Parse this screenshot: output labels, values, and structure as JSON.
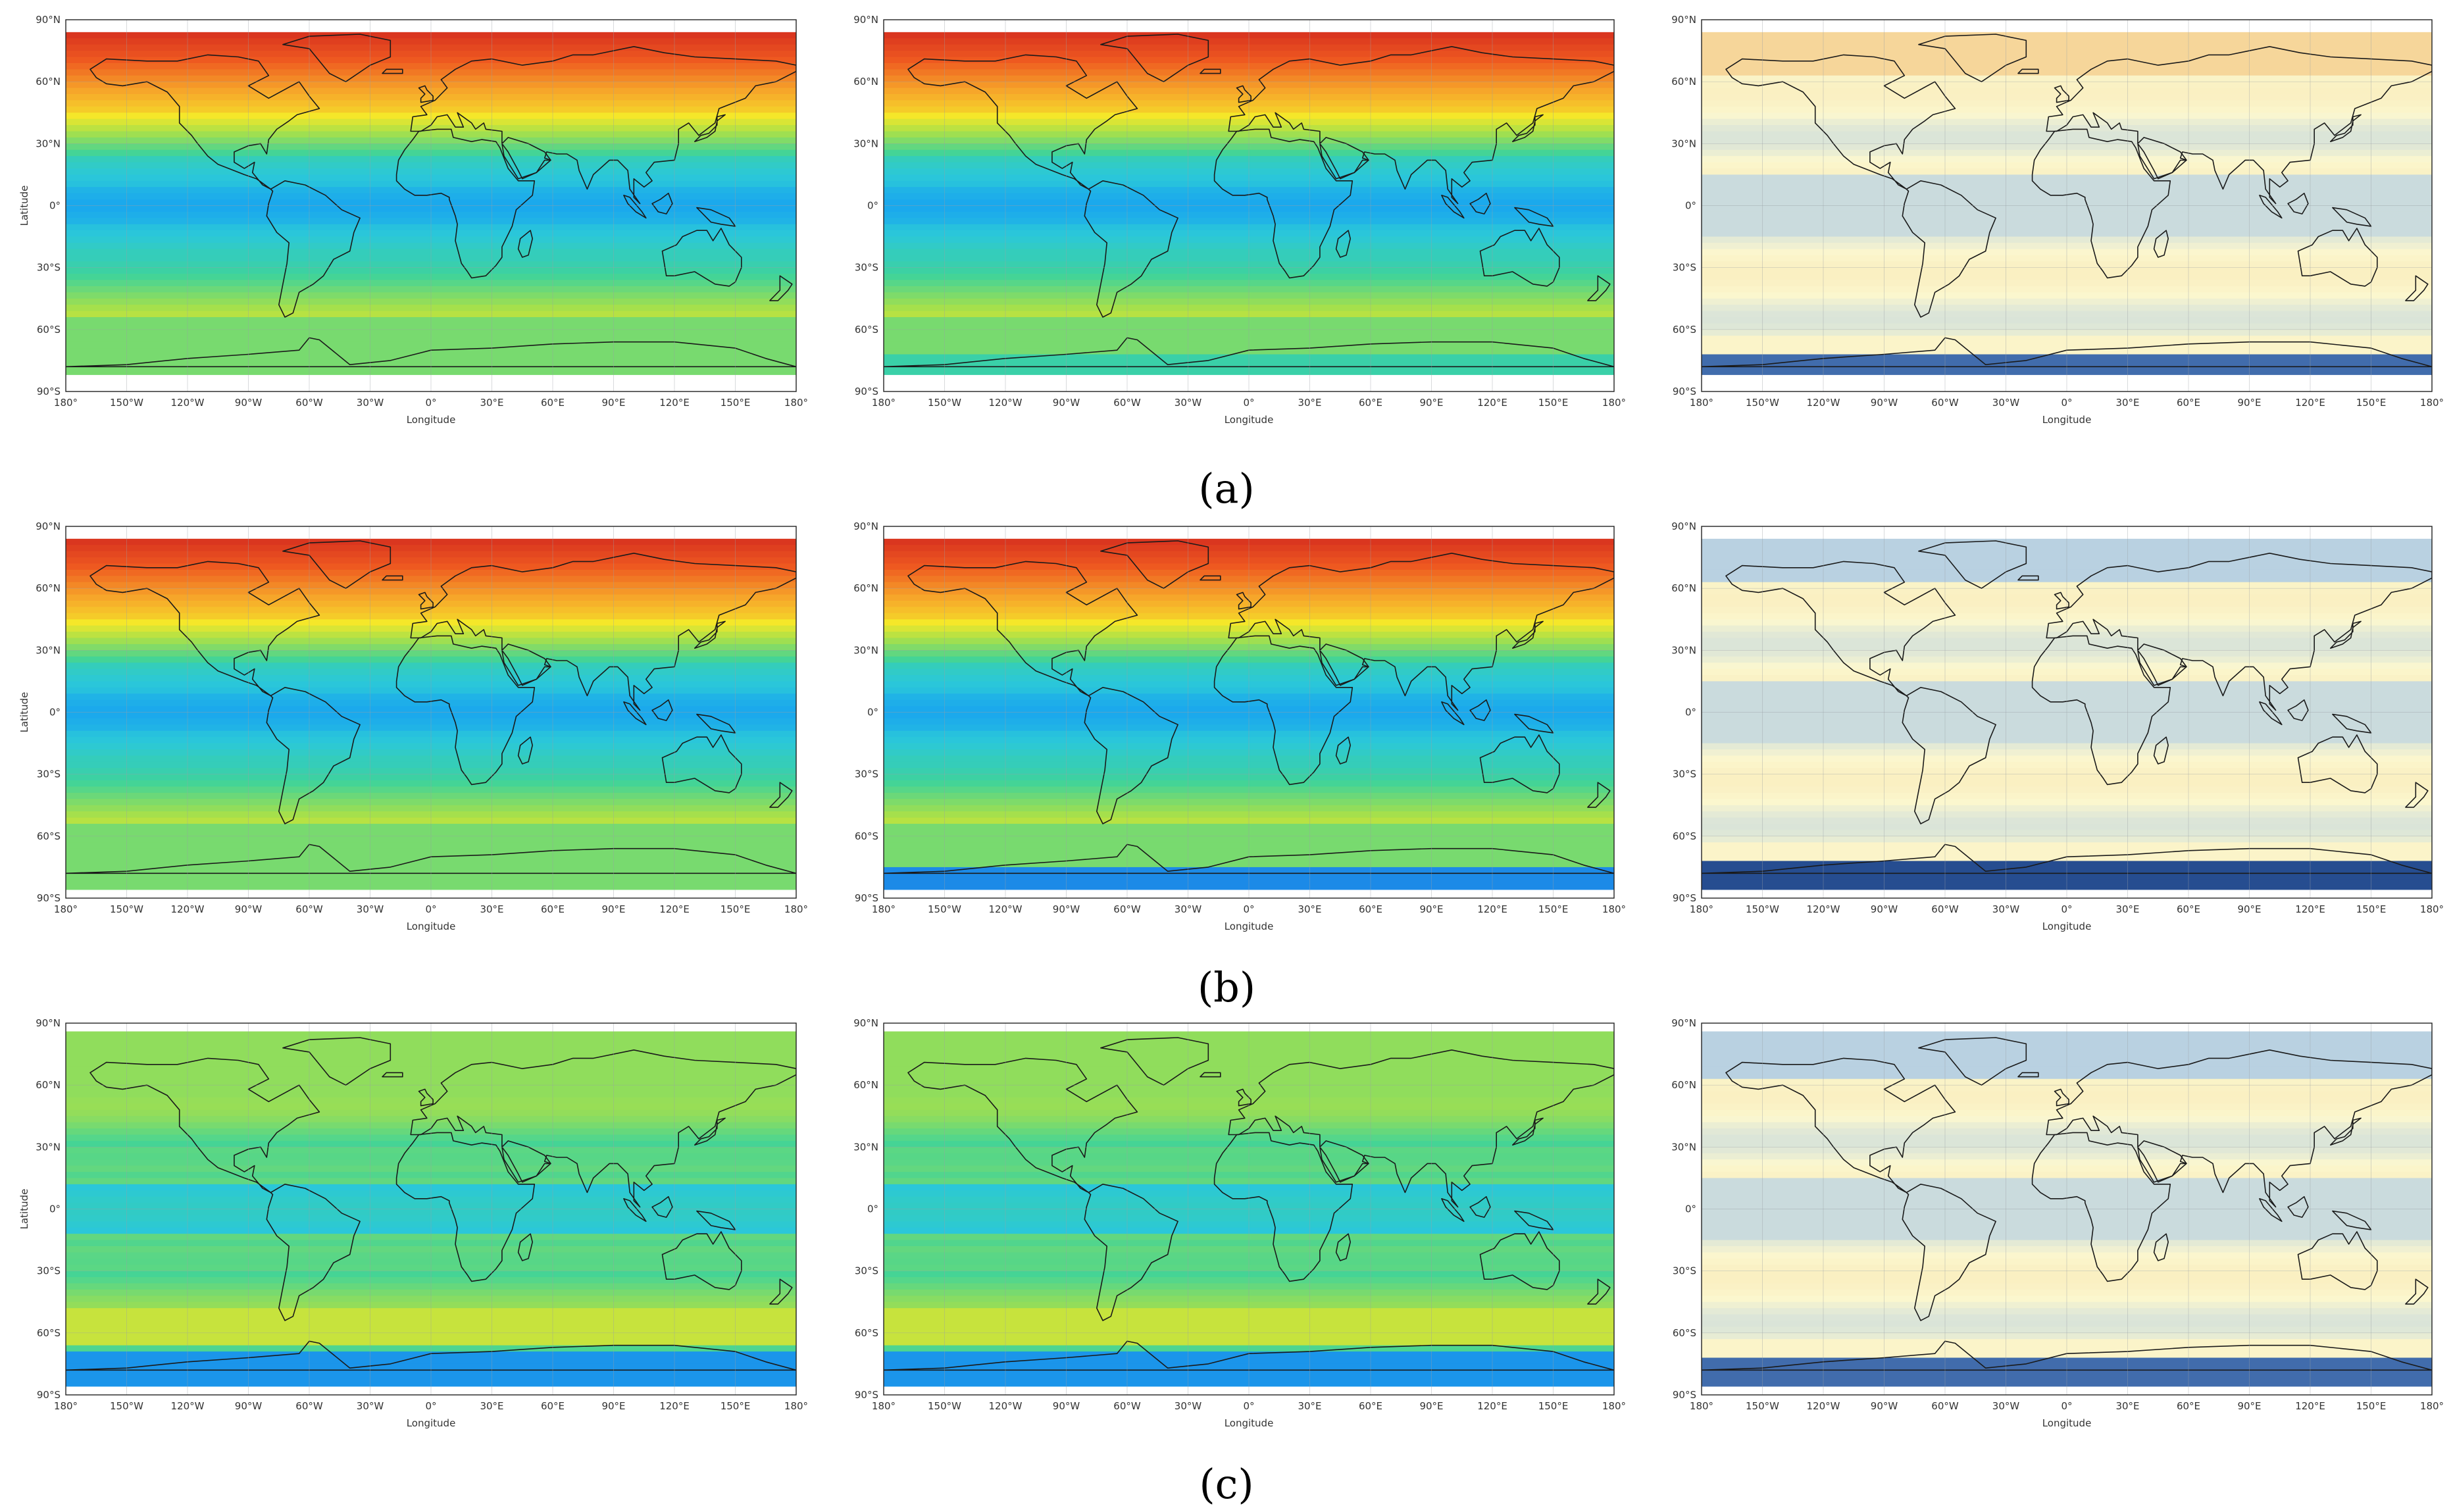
{
  "figure": {
    "rows": [
      {
        "caption": "(a)",
        "panels": [
          {
            "palette": "jet",
            "variant": "a-left"
          },
          {
            "palette": "jet",
            "variant": "a-mid"
          },
          {
            "palette": "diff",
            "variant": "a-right"
          }
        ]
      },
      {
        "caption": "(b)",
        "panels": [
          {
            "palette": "jet",
            "variant": "b-left"
          },
          {
            "palette": "jet",
            "variant": "b-mid"
          },
          {
            "palette": "diff",
            "variant": "b-right"
          }
        ]
      },
      {
        "caption": "(c)",
        "panels": [
          {
            "palette": "jet",
            "variant": "c-left"
          },
          {
            "palette": "jet",
            "variant": "c-mid"
          },
          {
            "palette": "diff",
            "variant": "c-right"
          }
        ]
      }
    ],
    "lat_ticks": [
      "90°N",
      "60°N",
      "30°N",
      "0°",
      "30°S",
      "60°S",
      "90°S"
    ],
    "lon_ticks": [
      "180°",
      "150°W",
      "120°W",
      "90°W",
      "60°W",
      "30°W",
      "0°",
      "30°E",
      "60°E",
      "90°E",
      "120°E",
      "150°E",
      "180°"
    ],
    "xlabel": "Longitude",
    "ylabel": "Latitude",
    "colors": {
      "jet_high": "#d7301f",
      "jet_mid": "#f5e829",
      "jet_low": "#1aa7ee",
      "diff_neg": "#2c5aa0",
      "diff_zero": "#fbf7cf",
      "diff_pos": "#e8742c"
    }
  }
}
